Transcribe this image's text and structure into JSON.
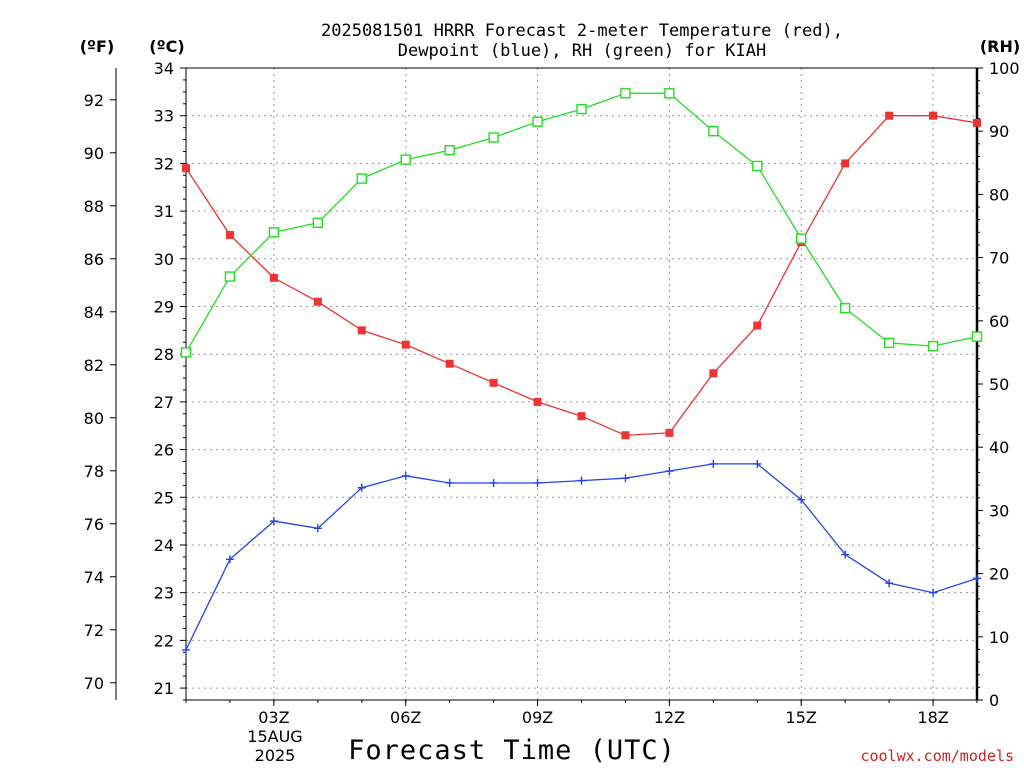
{
  "chart_data": {
    "type": "line",
    "title": [
      "2025081501 HRRR Forecast 2-meter Temperature (red),",
      "Dewpoint (blue), RH (green) for KIAH"
    ],
    "xlabel": "Forecast Time (UTC)",
    "axis_units": {
      "left_outer": "(ºF)",
      "left_inner": "(ºC)",
      "right": "(RH)"
    },
    "date_label": [
      "15AUG",
      "2025"
    ],
    "credit": "coolwx.com/models",
    "x_ticks": [
      {
        "hour": 3,
        "label": "03Z"
      },
      {
        "hour": 6,
        "label": "06Z"
      },
      {
        "hour": 9,
        "label": "09Z"
      },
      {
        "hour": 12,
        "label": "12Z"
      },
      {
        "hour": 15,
        "label": "15Z"
      },
      {
        "hour": 18,
        "label": "18Z"
      }
    ],
    "xlim": [
      1,
      19
    ],
    "celsius_ylim": [
      20.75,
      34
    ],
    "celsius_ticks": [
      21,
      22,
      23,
      24,
      25,
      26,
      27,
      28,
      29,
      30,
      31,
      32,
      33,
      34
    ],
    "fahrenheit_ticks": [
      70,
      72,
      74,
      76,
      78,
      80,
      82,
      84,
      86,
      88,
      90,
      92
    ],
    "rh_ylim": [
      0,
      100
    ],
    "rh_ticks": [
      0,
      10,
      20,
      30,
      40,
      50,
      60,
      70,
      80,
      90,
      100
    ],
    "grid": true,
    "series": [
      {
        "name": "Temperature",
        "axis": "celsius",
        "color": "#ee3333",
        "marker": "filled-square",
        "x": [
          1,
          2,
          3,
          4,
          5,
          6,
          7,
          8,
          9,
          10,
          11,
          12,
          13,
          14,
          15,
          16,
          17,
          18,
          19
        ],
        "values": [
          31.9,
          30.5,
          29.6,
          29.1,
          28.5,
          28.2,
          27.8,
          27.4,
          27.0,
          26.7,
          26.3,
          26.35,
          27.6,
          28.6,
          30.35,
          32.0,
          33.0,
          33.0,
          32.85
        ]
      },
      {
        "name": "Dewpoint",
        "axis": "celsius",
        "color": "#2244ee",
        "marker": "plus",
        "x": [
          1,
          2,
          3,
          4,
          5,
          6,
          7,
          8,
          9,
          10,
          11,
          12,
          13,
          14,
          15,
          16,
          17,
          18,
          19
        ],
        "values": [
          21.8,
          23.7,
          24.5,
          24.35,
          25.2,
          25.45,
          25.3,
          25.3,
          25.3,
          25.35,
          25.4,
          25.55,
          25.7,
          25.7,
          24.95,
          23.8,
          23.2,
          23.0,
          23.3
        ]
      },
      {
        "name": "RH",
        "axis": "rh",
        "color": "#22dd22",
        "marker": "open-square",
        "x": [
          1,
          2,
          3,
          4,
          5,
          6,
          7,
          8,
          9,
          10,
          11,
          12,
          13,
          14,
          15,
          16,
          17,
          18,
          19
        ],
        "values": [
          55.0,
          67.0,
          74.0,
          75.5,
          82.5,
          85.5,
          87.0,
          89.0,
          91.5,
          93.5,
          96.0,
          96.0,
          90.0,
          84.5,
          73.0,
          62.0,
          56.5,
          56.0,
          57.5
        ]
      }
    ]
  }
}
